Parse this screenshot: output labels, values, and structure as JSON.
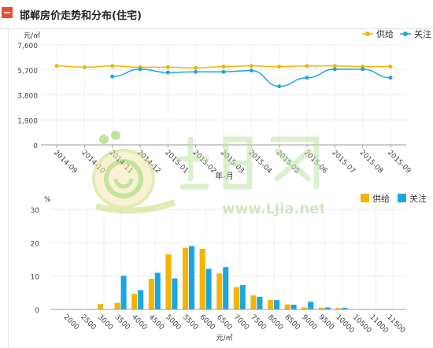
{
  "header": {
    "title": "邯郸房价走势和分布(住宅)"
  },
  "colors": {
    "supply": "#f4b400",
    "attention": "#1aa6e0",
    "accent": "#e8502a"
  },
  "watermark": {
    "text": "www.Ljia.net"
  },
  "chart_data": [
    {
      "type": "line",
      "ylabel": "元/㎡",
      "xlabel": "年-月",
      "ylim": [
        0,
        7600
      ],
      "yticks": [
        0,
        1900,
        3800,
        5700,
        7600
      ],
      "ytick_labels": [
        "0",
        "1,900",
        "3,800",
        "5,700",
        "7,600"
      ],
      "x": [
        "2014-09",
        "2014-10",
        "2014-11",
        "2014-12",
        "2015-01",
        "2015-02",
        "2015-03",
        "2015-04",
        "2015-05",
        "2015-06",
        "2015-07",
        "2015-08",
        "2015-09"
      ],
      "legend_position": "top-right",
      "grid": true,
      "series": [
        {
          "name": "供给",
          "color": "#f4b400",
          "values": [
            6000,
            5900,
            6000,
            5900,
            5900,
            5850,
            5950,
            6000,
            5950,
            6000,
            6000,
            5950,
            5950
          ]
        },
        {
          "name": "关注",
          "color": "#1aa6e0",
          "values": [
            null,
            null,
            5200,
            5750,
            5500,
            5550,
            5550,
            5650,
            4450,
            5100,
            5750,
            5750,
            5100
          ]
        }
      ]
    },
    {
      "type": "bar",
      "ylabel": "%",
      "xlabel": "元/㎡",
      "ylim": [
        0,
        30
      ],
      "yticks": [
        0,
        10,
        20,
        30
      ],
      "categories": [
        "2000",
        "2500",
        "3000",
        "3500",
        "4000",
        "4500",
        "5000",
        "5500",
        "6000",
        "6500",
        "7000",
        "7500",
        "8000",
        "8500",
        "9000",
        "9500",
        "10000",
        "10500",
        "11000",
        "11500"
      ],
      "legend_position": "top-right",
      "grid": true,
      "series": [
        {
          "name": "供给",
          "color": "#f4b400",
          "values": [
            0,
            0,
            1.6,
            2.0,
            4.7,
            9.2,
            16.5,
            18.5,
            18.2,
            10.8,
            6.7,
            4.2,
            2.8,
            1.5,
            0.6,
            0.5,
            0.4,
            0,
            0,
            0
          ]
        },
        {
          "name": "关注",
          "color": "#1aa6e0",
          "values": [
            0,
            0,
            0,
            10.1,
            5.8,
            11.0,
            9.3,
            19.0,
            12.2,
            12.7,
            7.3,
            3.8,
            2.8,
            1.4,
            2.3,
            0.6,
            0.5,
            0,
            0,
            0
          ]
        }
      ]
    }
  ]
}
